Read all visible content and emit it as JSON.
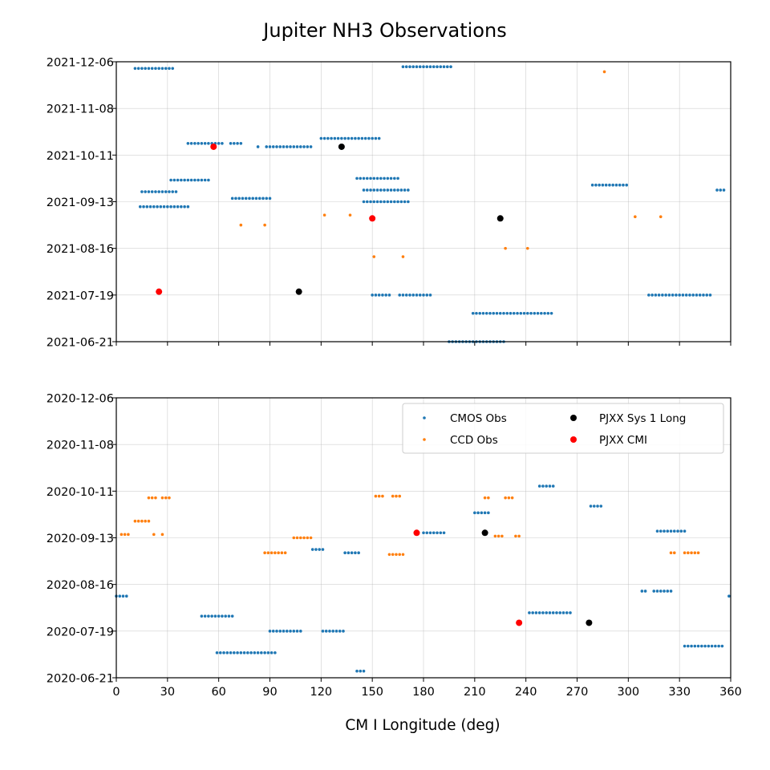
{
  "chart_data": {
    "type": "scatter",
    "title": "Jupiter NH3 Observations",
    "xlabel": "CM I Longitude (deg)",
    "xlim": [
      0,
      360
    ],
    "xticks": [
      0,
      30,
      60,
      90,
      120,
      150,
      180,
      210,
      240,
      270,
      300,
      330,
      360
    ],
    "grid": true,
    "colors": {
      "CMOS Obs": "#1f77b4",
      "CCD Obs": "#ff7f0e",
      "PJXX Sys 1 Long": "#000000",
      "PJXX CMI": "#ff0000"
    },
    "legend": {
      "location": "upper right of lower panel",
      "entries": [
        "CMOS Obs",
        "CCD Obs",
        "PJXX Sys 1 Long",
        "PJXX CMI"
      ]
    },
    "panels": [
      {
        "name": "2021",
        "ylim": [
          "2021-06-21",
          "2021-12-06"
        ],
        "ytick_labels": [
          "2021-06-21",
          "2021-07-19",
          "2021-08-16",
          "2021-09-13",
          "2021-10-11",
          "2021-11-08",
          "2021-12-06"
        ],
        "series": [
          {
            "name": "CMOS Obs",
            "marker": "small dot",
            "runs": [
              {
                "date": "2021-12-02",
                "x_from": 11,
                "x_to": 33,
                "step": 2
              },
              {
                "date": "2021-12-03",
                "x_from": 168,
                "x_to": 196,
                "step": 2
              },
              {
                "date": "2021-10-18",
                "x_from": 42,
                "x_to": 63,
                "step": 2
              },
              {
                "date": "2021-10-18",
                "x_from": 67,
                "x_to": 73,
                "step": 2
              },
              {
                "date": "2021-10-16",
                "x_from": 83,
                "x_to": 83,
                "step": 2
              },
              {
                "date": "2021-10-16",
                "x_from": 88,
                "x_to": 115,
                "step": 2
              },
              {
                "date": "2021-10-21",
                "x_from": 120,
                "x_to": 155,
                "step": 2
              },
              {
                "date": "2021-09-26",
                "x_from": 32,
                "x_to": 54,
                "step": 2
              },
              {
                "date": "2021-09-19",
                "x_from": 15,
                "x_to": 36,
                "step": 2
              },
              {
                "date": "2021-09-10",
                "x_from": 14,
                "x_to": 43,
                "step": 2
              },
              {
                "date": "2021-09-15",
                "x_from": 68,
                "x_to": 91,
                "step": 2
              },
              {
                "date": "2021-09-27",
                "x_from": 141,
                "x_to": 165,
                "step": 2
              },
              {
                "date": "2021-09-20",
                "x_from": 145,
                "x_to": 172,
                "step": 2
              },
              {
                "date": "2021-09-13",
                "x_from": 145,
                "x_to": 172,
                "step": 2
              },
              {
                "date": "2021-09-23",
                "x_from": 279,
                "x_to": 299,
                "step": 2
              },
              {
                "date": "2021-09-20",
                "x_from": 352,
                "x_to": 357,
                "step": 2
              },
              {
                "date": "2021-07-19",
                "x_from": 150,
                "x_to": 160,
                "step": 2
              },
              {
                "date": "2021-07-19",
                "x_from": 166,
                "x_to": 184,
                "step": 2
              },
              {
                "date": "2021-07-19",
                "x_from": 312,
                "x_to": 348,
                "step": 2
              },
              {
                "date": "2021-07-08",
                "x_from": 209,
                "x_to": 256,
                "step": 2
              },
              {
                "date": "2021-06-21",
                "x_from": 195,
                "x_to": 228,
                "step": 2
              }
            ]
          },
          {
            "name": "CCD Obs",
            "marker": "small dot",
            "points": [
              [
                286,
                "2021-11-30"
              ],
              [
                122,
                "2021-09-05"
              ],
              [
                137,
                "2021-09-05"
              ],
              [
                73,
                "2021-08-30"
              ],
              [
                87,
                "2021-08-30"
              ],
              [
                228,
                "2021-08-16"
              ],
              [
                241,
                "2021-08-16"
              ],
              [
                151,
                "2021-08-11"
              ],
              [
                168,
                "2021-08-11"
              ],
              [
                304,
                "2021-09-04"
              ],
              [
                319,
                "2021-09-04"
              ]
            ]
          },
          {
            "name": "PJXX Sys 1 Long",
            "marker": "large dot",
            "points": [
              [
                132,
                "2021-10-16"
              ],
              [
                225,
                "2021-09-03"
              ],
              [
                107,
                "2021-07-21"
              ]
            ]
          },
          {
            "name": "PJXX CMI",
            "marker": "large dot",
            "points": [
              [
                57,
                "2021-10-16"
              ],
              [
                150,
                "2021-09-03"
              ],
              [
                25,
                "2021-07-21"
              ]
            ]
          }
        ]
      },
      {
        "name": "2020",
        "ylim": [
          "2020-06-21",
          "2020-12-06"
        ],
        "ytick_labels": [
          "2020-06-21",
          "2020-07-19",
          "2020-08-16",
          "2020-09-13",
          "2020-10-11",
          "2020-11-08",
          "2020-12-06"
        ],
        "series": [
          {
            "name": "CMOS Obs",
            "marker": "small dot",
            "runs": [
              {
                "date": "2020-08-09",
                "x_from": 0,
                "x_to": 6,
                "step": 2
              },
              {
                "date": "2020-08-09",
                "x_from": 359,
                "x_to": 360,
                "step": 2
              },
              {
                "date": "2020-07-28",
                "x_from": 50,
                "x_to": 68,
                "step": 2
              },
              {
                "date": "2020-07-19",
                "x_from": 90,
                "x_to": 108,
                "step": 2
              },
              {
                "date": "2020-07-19",
                "x_from": 121,
                "x_to": 133,
                "step": 2
              },
              {
                "date": "2020-07-06",
                "x_from": 59,
                "x_to": 93,
                "step": 2
              },
              {
                "date": "2020-06-25",
                "x_from": 141,
                "x_to": 145,
                "step": 2
              },
              {
                "date": "2020-09-06",
                "x_from": 115,
                "x_to": 122,
                "step": 2
              },
              {
                "date": "2020-09-04",
                "x_from": 134,
                "x_to": 143,
                "step": 2
              },
              {
                "date": "2020-09-16",
                "x_from": 180,
                "x_to": 193,
                "step": 2
              },
              {
                "date": "2020-09-28",
                "x_from": 210,
                "x_to": 218,
                "step": 2
              },
              {
                "date": "2020-10-14",
                "x_from": 248,
                "x_to": 256,
                "step": 2
              },
              {
                "date": "2020-10-02",
                "x_from": 278,
                "x_to": 285,
                "step": 2
              },
              {
                "date": "2020-07-30",
                "x_from": 242,
                "x_to": 267,
                "step": 2
              },
              {
                "date": "2020-08-12",
                "x_from": 308,
                "x_to": 311,
                "step": 2
              },
              {
                "date": "2020-08-12",
                "x_from": 315,
                "x_to": 325,
                "step": 2
              },
              {
                "date": "2020-09-17",
                "x_from": 317,
                "x_to": 334,
                "step": 2
              },
              {
                "date": "2020-07-10",
                "x_from": 333,
                "x_to": 355,
                "step": 2
              }
            ]
          },
          {
            "name": "CCD Obs",
            "marker": "small dot",
            "runs": [
              {
                "date": "2020-09-15",
                "x_from": 3,
                "x_to": 7,
                "step": 2
              },
              {
                "date": "2020-09-15",
                "x_from": 22,
                "x_to": 22,
                "step": 2
              },
              {
                "date": "2020-09-15",
                "x_from": 27,
                "x_to": 27,
                "step": 2
              },
              {
                "date": "2020-09-23",
                "x_from": 11,
                "x_to": 19,
                "step": 2
              },
              {
                "date": "2020-10-07",
                "x_from": 19,
                "x_to": 23,
                "step": 2
              },
              {
                "date": "2020-10-07",
                "x_from": 27,
                "x_to": 31,
                "step": 2
              },
              {
                "date": "2020-09-04",
                "x_from": 87,
                "x_to": 100,
                "step": 2
              },
              {
                "date": "2020-09-13",
                "x_from": 104,
                "x_to": 115,
                "step": 2
              },
              {
                "date": "2020-10-08",
                "x_from": 152,
                "x_to": 156,
                "step": 2
              },
              {
                "date": "2020-10-08",
                "x_from": 162,
                "x_to": 167,
                "step": 2
              },
              {
                "date": "2020-09-03",
                "x_from": 160,
                "x_to": 169,
                "step": 2
              },
              {
                "date": "2020-10-07",
                "x_from": 216,
                "x_to": 219,
                "step": 2
              },
              {
                "date": "2020-10-07",
                "x_from": 228,
                "x_to": 232,
                "step": 2
              },
              {
                "date": "2020-09-14",
                "x_from": 222,
                "x_to": 226,
                "step": 2
              },
              {
                "date": "2020-09-14",
                "x_from": 234,
                "x_to": 237,
                "step": 2
              },
              {
                "date": "2020-09-04",
                "x_from": 325,
                "x_to": 328,
                "step": 2
              },
              {
                "date": "2020-09-04",
                "x_from": 333,
                "x_to": 342,
                "step": 2
              }
            ]
          },
          {
            "name": "PJXX Sys 1 Long",
            "marker": "large dot",
            "points": [
              [
                216,
                "2020-09-16"
              ],
              [
                277,
                "2020-07-24"
              ]
            ]
          },
          {
            "name": "PJXX CMI",
            "marker": "large dot",
            "points": [
              [
                176,
                "2020-09-16"
              ],
              [
                236,
                "2020-07-24"
              ]
            ]
          }
        ]
      }
    ]
  }
}
